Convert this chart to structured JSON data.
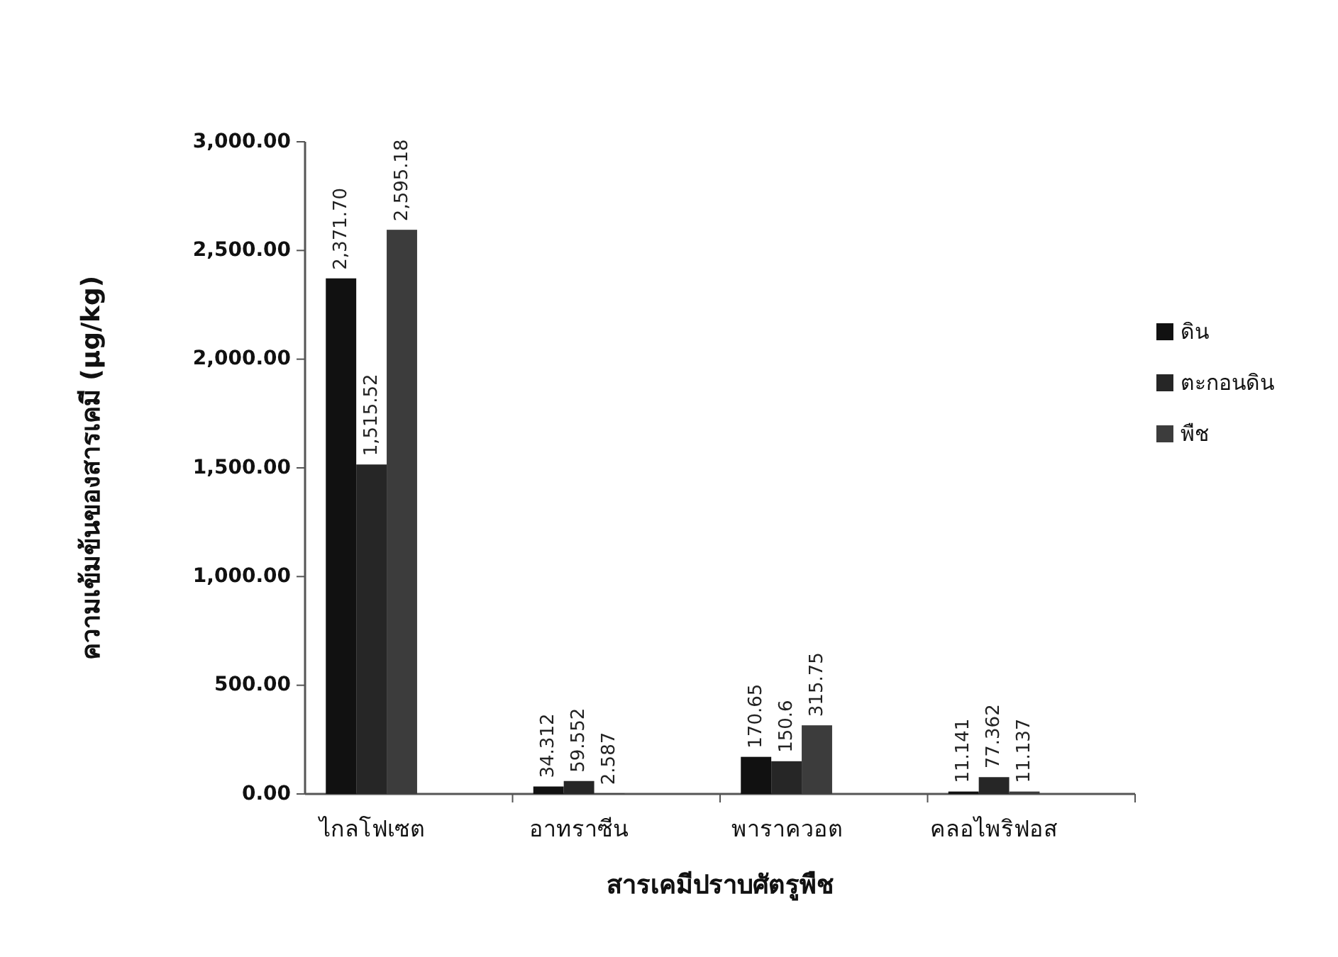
{
  "chart_data": {
    "type": "bar",
    "xlabel": "สารเคมีปราบศัตรูพืช",
    "ylabel": "ความเข้มข้นของสารเคมี (µg/kg)",
    "categories": [
      "ไกลโฟเซต",
      "อาทราซีน",
      "พาราควอต",
      "คลอไพริฟอส"
    ],
    "series": [
      {
        "name": "ดิน",
        "color": "#111111",
        "values": [
          2371.7,
          34.312,
          170.65,
          11.141
        ],
        "value_labels": [
          "2,371.70",
          "34.312",
          "170.65",
          "11.141"
        ]
      },
      {
        "name": "ตะกอนดิน",
        "color": "#262626",
        "values": [
          1515.52,
          59.552,
          150.6,
          77.362
        ],
        "value_labels": [
          "1,515.52",
          "59.552",
          "150.6",
          "77.362"
        ]
      },
      {
        "name": "พืช",
        "color": "#3c3c3c",
        "values": [
          2595.18,
          2.587,
          315.75,
          11.137
        ],
        "value_labels": [
          "2,595.18",
          "2.587",
          "315.75",
          "11.137"
        ]
      }
    ],
    "ylim": [
      0,
      3000
    ],
    "yticks": [
      {
        "value": 0,
        "label": "0.00"
      },
      {
        "value": 500,
        "label": "500.00"
      },
      {
        "value": 1000,
        "label": "1,000.00"
      },
      {
        "value": 1500,
        "label": "1,500.00"
      },
      {
        "value": 2000,
        "label": "2,000.00"
      },
      {
        "value": 2500,
        "label": "2,500.00"
      },
      {
        "value": 3000,
        "label": "3,000.00"
      }
    ],
    "legend": "right"
  }
}
